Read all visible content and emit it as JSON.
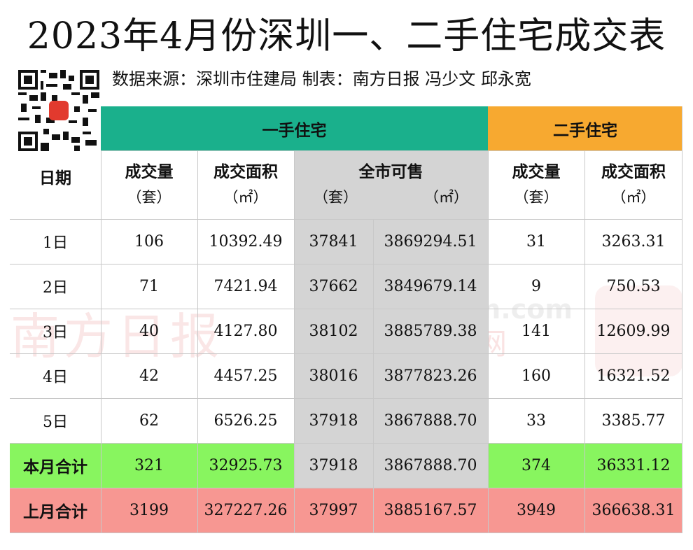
{
  "title": "2023年4月份深圳一、二手住宅成交表",
  "source": "数据来源：深圳市住建局 制表：南方日报 冯少文 邱永宽",
  "watermarks": {
    "nanfang": "南方日报",
    "southcn": "Southcn.com",
    "nfw": "南方网"
  },
  "groups": {
    "first_hand": "一手住宅",
    "second_hand": "二手住宅"
  },
  "columns": {
    "date": "日期",
    "volume": "成交量",
    "volume_unit": "（套）",
    "area": "成交面积",
    "area_unit": "（㎡）",
    "available": "全市可售",
    "available_unit_sets": "（套）",
    "available_unit_area": "（㎡）",
    "volume2": "成交量",
    "volume2_unit": "（套）",
    "area2": "成交面积",
    "area2_unit": "（㎡）"
  },
  "rows": [
    {
      "date": "1日",
      "v1": "106",
      "a1": "10392.49",
      "s": "37841",
      "sa": "3869294.51",
      "v2": "31",
      "a2": "3263.31"
    },
    {
      "date": "2日",
      "v1": "71",
      "a1": "7421.94",
      "s": "37662",
      "sa": "3849679.14",
      "v2": "9",
      "a2": "750.53"
    },
    {
      "date": "3日",
      "v1": "40",
      "a1": "4127.80",
      "s": "38102",
      "sa": "3885789.38",
      "v2": "141",
      "a2": "12609.99"
    },
    {
      "date": "4日",
      "v1": "42",
      "a1": "4457.25",
      "s": "38016",
      "sa": "3877823.26",
      "v2": "160",
      "a2": "16321.52"
    },
    {
      "date": "5日",
      "v1": "62",
      "a1": "6526.25",
      "s": "37918",
      "sa": "3867888.70",
      "v2": "33",
      "a2": "3385.77"
    }
  ],
  "month_total": {
    "label": "本月合计",
    "v1": "321",
    "a1": "32925.73",
    "s": "37918",
    "sa": "3867888.70",
    "v2": "374",
    "a2": "36331.12"
  },
  "last_month_total": {
    "label": "上月合计",
    "v1": "3199",
    "a1": "327227.26",
    "s": "37997",
    "sa": "3885167.57",
    "v2": "3949",
    "a2": "366638.31"
  },
  "colors": {
    "green": "#1ab08c",
    "orange": "#f7a930",
    "grey": "#d4d4d4",
    "lime": "#88f55f",
    "pink": "#f79792"
  }
}
